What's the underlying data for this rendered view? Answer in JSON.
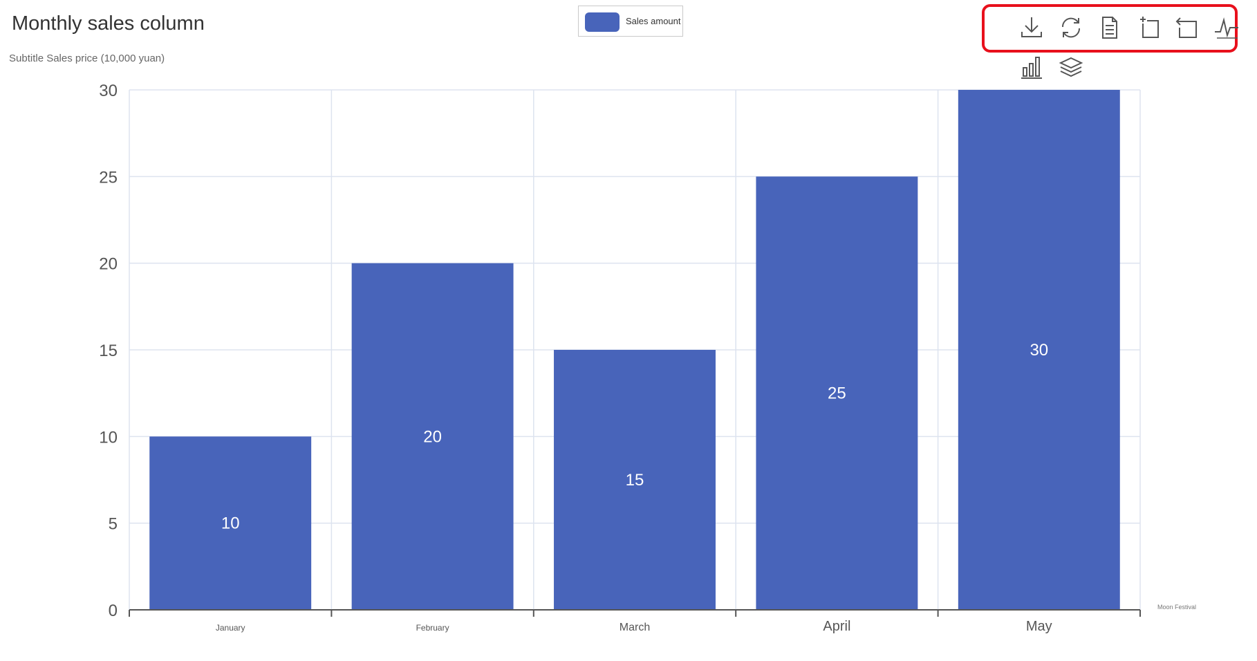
{
  "chart_data": {
    "type": "bar",
    "title": "Monthly sales column",
    "subtitle": "Subtitle Sales price (10,000 yuan)",
    "categories": [
      "January",
      "February",
      "March",
      "April",
      "May"
    ],
    "series": [
      {
        "name": "Sales amount",
        "values": [
          10,
          20,
          15,
          25,
          30
        ],
        "color": "#4864ba"
      }
    ],
    "ylim": [
      0,
      30
    ],
    "yticks": [
      0,
      5,
      10,
      15,
      20,
      25,
      30
    ],
    "data_labels": true,
    "grid": true,
    "legend_position": "top-center",
    "extra_x_label": "Moon Festival"
  },
  "toolbox": {
    "highlight_color": "#e8101c",
    "tools": [
      {
        "name": "download-icon",
        "title": "Save as image"
      },
      {
        "name": "refresh-icon",
        "title": "Restore"
      },
      {
        "name": "document-icon",
        "title": "Data view"
      },
      {
        "name": "zoom-area-icon",
        "title": "Zoom"
      },
      {
        "name": "zoom-back-icon",
        "title": "Zoom reset"
      },
      {
        "name": "line-chart-icon",
        "title": "Switch to line chart"
      },
      {
        "name": "bar-chart-icon",
        "title": "Switch to bar chart"
      },
      {
        "name": "stack-icon",
        "title": "Switch to stacked"
      }
    ]
  }
}
